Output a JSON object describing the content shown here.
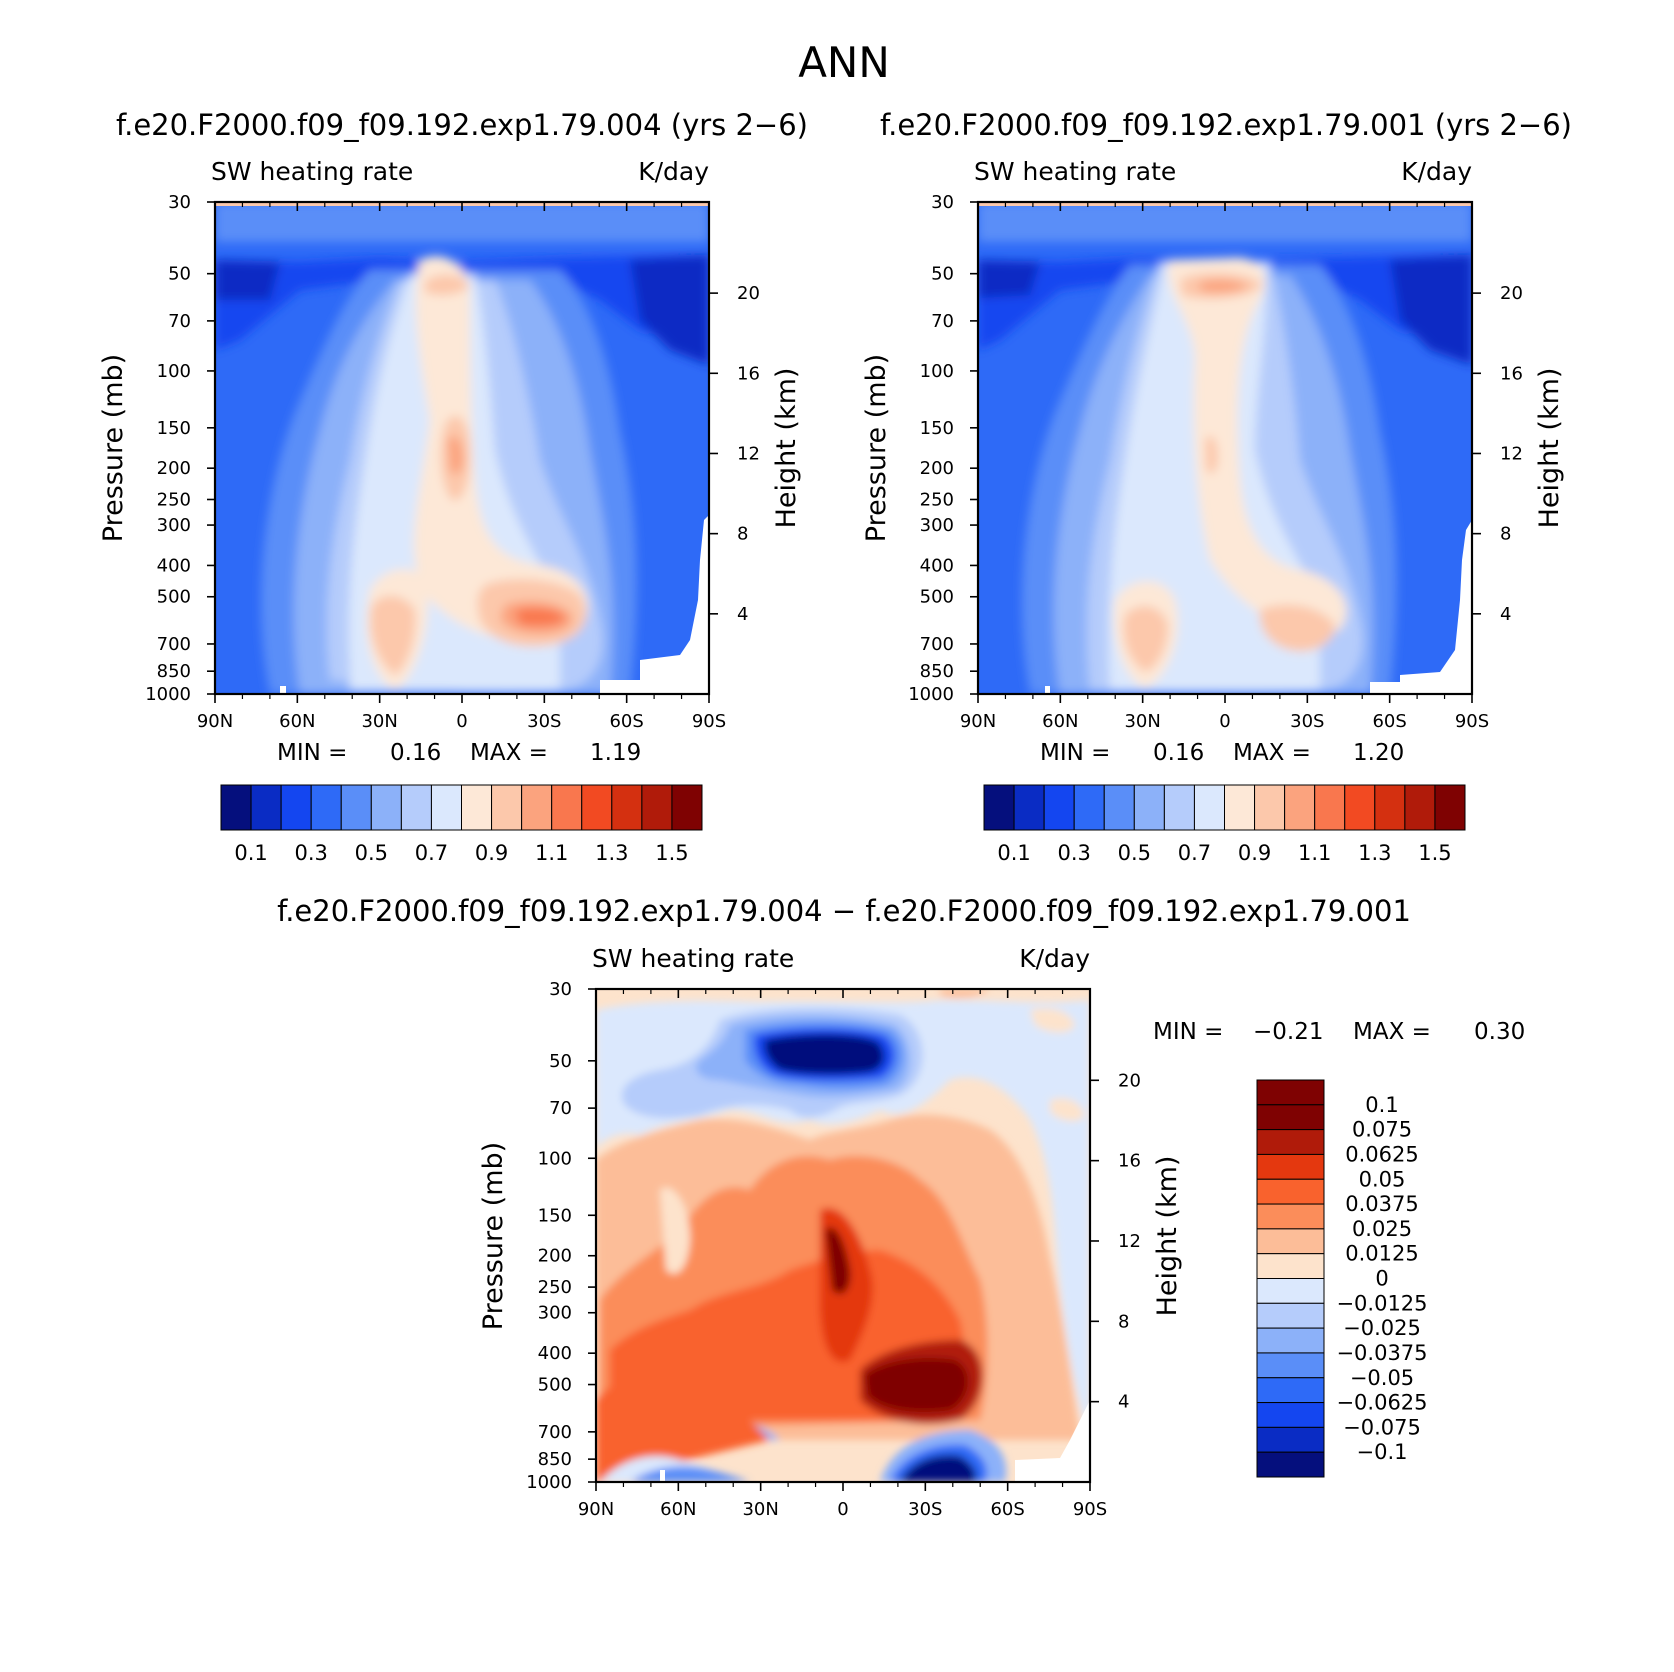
{
  "figure_title": "ANN",
  "chart_data": [
    {
      "type": "heatmap",
      "title": "f.e20.F2000.f09_f09.192.exp1.79.004 (yrs 2−6)",
      "subtitle_left": "SW heating rate",
      "subtitle_right": "K/day",
      "xlabel": "",
      "ylabel": "Pressure (mb)",
      "ylabel_right": "Height (km)",
      "x_ticks": [
        "90N",
        "60N",
        "30N",
        "0",
        "30S",
        "60S",
        "90S"
      ],
      "y_ticks": [
        "30",
        "50",
        "70",
        "100",
        "150",
        "200",
        "250",
        "300",
        "400",
        "500",
        "700",
        "850",
        "1000"
      ],
      "y_ticks_right": [
        "20",
        "16",
        "12",
        "8",
        "4"
      ],
      "min_label": "MIN =",
      "min_value": "0.16",
      "max_label": "MAX =",
      "max_value": "1.19",
      "colorbar_labels": [
        "0.1",
        "0.3",
        "0.5",
        "0.7",
        "0.9",
        "1.1",
        "1.3",
        "1.5"
      ],
      "colorbar_colors": [
        "#050f7d",
        "#0a2cc4",
        "#1446f0",
        "#2e6af7",
        "#5a8ef8",
        "#8cb1f9",
        "#b5ccfb",
        "#dbe8fd",
        "#fde8d7",
        "#fcc8ab",
        "#fba37e",
        "#f9774e",
        "#f24a22",
        "#d43010",
        "#b01b0a",
        "#7f0202"
      ]
    },
    {
      "type": "heatmap",
      "title": "f.e20.F2000.f09_f09.192.exp1.79.001 (yrs 2−6)",
      "subtitle_left": "SW heating rate",
      "subtitle_right": "K/day",
      "xlabel": "",
      "ylabel": "Pressure (mb)",
      "ylabel_right": "Height (km)",
      "x_ticks": [
        "90N",
        "60N",
        "30N",
        "0",
        "30S",
        "60S",
        "90S"
      ],
      "y_ticks": [
        "30",
        "50",
        "70",
        "100",
        "150",
        "200",
        "250",
        "300",
        "400",
        "500",
        "700",
        "850",
        "1000"
      ],
      "y_ticks_right": [
        "20",
        "16",
        "12",
        "8",
        "4"
      ],
      "min_label": "MIN =",
      "min_value": "0.16",
      "max_label": "MAX =",
      "max_value": "1.20",
      "colorbar_labels": [
        "0.1",
        "0.3",
        "0.5",
        "0.7",
        "0.9",
        "1.1",
        "1.3",
        "1.5"
      ],
      "colorbar_colors": [
        "#050f7d",
        "#0a2cc4",
        "#1446f0",
        "#2e6af7",
        "#5a8ef8",
        "#8cb1f9",
        "#b5ccfb",
        "#dbe8fd",
        "#fde8d7",
        "#fcc8ab",
        "#fba37e",
        "#f9774e",
        "#f24a22",
        "#d43010",
        "#b01b0a",
        "#7f0202"
      ]
    },
    {
      "type": "heatmap",
      "title": "f.e20.F2000.f09_f09.192.exp1.79.004 − f.e20.F2000.f09_f09.192.exp1.79.001",
      "subtitle_left": "SW heating rate",
      "subtitle_right": "K/day",
      "xlabel": "",
      "ylabel": "Pressure (mb)",
      "ylabel_right": "Height (km)",
      "x_ticks": [
        "90N",
        "60N",
        "30N",
        "0",
        "30S",
        "60S",
        "90S"
      ],
      "y_ticks": [
        "30",
        "50",
        "70",
        "100",
        "150",
        "200",
        "250",
        "300",
        "400",
        "500",
        "700",
        "850",
        "1000"
      ],
      "y_ticks_right": [
        "20",
        "16",
        "12",
        "8",
        "4"
      ],
      "min_label": "MIN =",
      "min_value": "−0.21",
      "max_label": "MAX =",
      "max_value": "0.30",
      "colorbar_labels": [
        "0.1",
        "0.075",
        "0.0625",
        "0.05",
        "0.0375",
        "0.025",
        "0.0125",
        "0",
        "−0.0125",
        "−0.025",
        "−0.0375",
        "−0.05",
        "−0.0625",
        "−0.075",
        "−0.1"
      ],
      "colorbar_colors": [
        "#7f0202",
        "#b01b0a",
        "#e4380f",
        "#f9622d",
        "#fb8d5a",
        "#fcbd98",
        "#fde3cc",
        "#dbe8fd",
        "#b5ccfb",
        "#8cb1f9",
        "#5a8ef8",
        "#2e6af7",
        "#1446f0",
        "#0a2cc4",
        "#050f7d"
      ]
    }
  ]
}
